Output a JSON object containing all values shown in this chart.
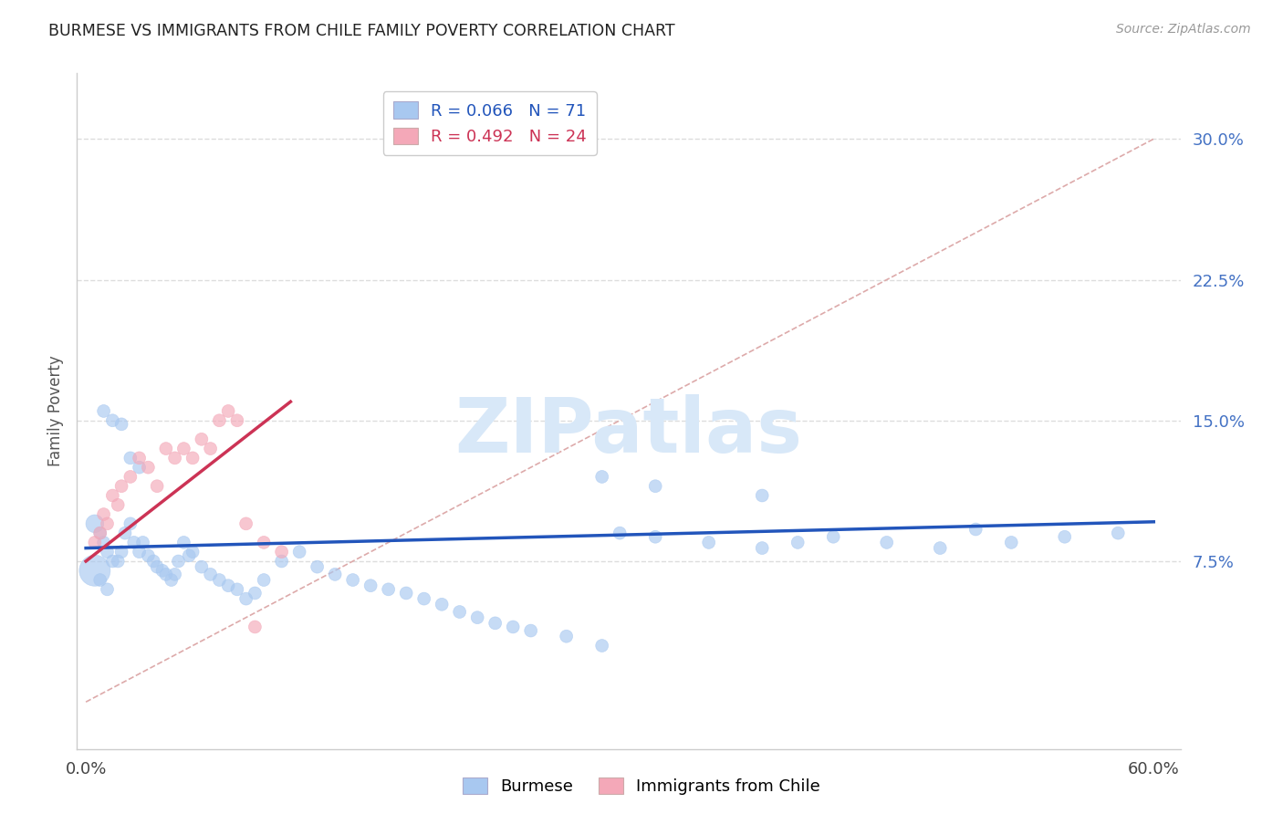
{
  "title": "BURMESE VS IMMIGRANTS FROM CHILE FAMILY POVERTY CORRELATION CHART",
  "source": "Source: ZipAtlas.com",
  "ylabel": "Family Poverty",
  "ytick_labels": [
    "7.5%",
    "15.0%",
    "22.5%",
    "30.0%"
  ],
  "ytick_values": [
    0.075,
    0.15,
    0.225,
    0.3
  ],
  "xtick_labels": [
    "0.0%",
    "60.0%"
  ],
  "xtick_values": [
    0.0,
    0.6
  ],
  "xlim": [
    -0.005,
    0.615
  ],
  "ylim": [
    -0.025,
    0.335
  ],
  "blue_color": "#a8c8f0",
  "pink_color": "#f4a8b8",
  "blue_line_color": "#2255bb",
  "pink_line_color": "#cc3355",
  "ref_line_color": "#ddaaaa",
  "grid_color": "#dddddd",
  "watermark_color": "#d8e8f8",
  "blue_scatter_x": [
    0.005,
    0.008,
    0.01,
    0.012,
    0.015,
    0.018,
    0.02,
    0.022,
    0.025,
    0.027,
    0.03,
    0.032,
    0.035,
    0.038,
    0.04,
    0.043,
    0.045,
    0.048,
    0.05,
    0.052,
    0.055,
    0.058,
    0.06,
    0.065,
    0.07,
    0.075,
    0.08,
    0.085,
    0.09,
    0.095,
    0.1,
    0.11,
    0.12,
    0.13,
    0.14,
    0.15,
    0.16,
    0.17,
    0.18,
    0.19,
    0.2,
    0.21,
    0.22,
    0.23,
    0.24,
    0.25,
    0.27,
    0.29,
    0.3,
    0.32,
    0.35,
    0.38,
    0.4,
    0.42,
    0.45,
    0.48,
    0.5,
    0.52,
    0.55,
    0.58,
    0.01,
    0.015,
    0.02,
    0.025,
    0.03,
    0.29,
    0.32,
    0.38,
    0.005,
    0.008,
    0.012
  ],
  "blue_scatter_y": [
    0.095,
    0.09,
    0.085,
    0.08,
    0.075,
    0.075,
    0.08,
    0.09,
    0.095,
    0.085,
    0.08,
    0.085,
    0.078,
    0.075,
    0.072,
    0.07,
    0.068,
    0.065,
    0.068,
    0.075,
    0.085,
    0.078,
    0.08,
    0.072,
    0.068,
    0.065,
    0.062,
    0.06,
    0.055,
    0.058,
    0.065,
    0.075,
    0.08,
    0.072,
    0.068,
    0.065,
    0.062,
    0.06,
    0.058,
    0.055,
    0.052,
    0.048,
    0.045,
    0.042,
    0.04,
    0.038,
    0.035,
    0.03,
    0.09,
    0.088,
    0.085,
    0.082,
    0.085,
    0.088,
    0.085,
    0.082,
    0.092,
    0.085,
    0.088,
    0.09,
    0.155,
    0.15,
    0.148,
    0.13,
    0.125,
    0.12,
    0.115,
    0.11,
    0.07,
    0.065,
    0.06
  ],
  "blue_scatter_sizes": [
    200,
    100,
    100,
    100,
    100,
    100,
    100,
    100,
    100,
    100,
    100,
    100,
    100,
    100,
    100,
    100,
    100,
    100,
    100,
    100,
    100,
    100,
    100,
    100,
    100,
    100,
    100,
    100,
    100,
    100,
    100,
    100,
    100,
    100,
    100,
    100,
    100,
    100,
    100,
    100,
    100,
    100,
    100,
    100,
    100,
    100,
    100,
    100,
    100,
    100,
    100,
    100,
    100,
    100,
    100,
    100,
    100,
    100,
    100,
    100,
    100,
    100,
    100,
    100,
    100,
    100,
    100,
    100,
    600,
    100,
    100
  ],
  "pink_scatter_x": [
    0.005,
    0.008,
    0.01,
    0.012,
    0.015,
    0.018,
    0.02,
    0.025,
    0.03,
    0.035,
    0.04,
    0.045,
    0.05,
    0.055,
    0.06,
    0.065,
    0.07,
    0.075,
    0.08,
    0.085,
    0.09,
    0.095,
    0.1,
    0.11
  ],
  "pink_scatter_y": [
    0.085,
    0.09,
    0.1,
    0.095,
    0.11,
    0.105,
    0.115,
    0.12,
    0.13,
    0.125,
    0.115,
    0.135,
    0.13,
    0.135,
    0.13,
    0.14,
    0.135,
    0.15,
    0.155,
    0.15,
    0.095,
    0.04,
    0.085,
    0.08
  ],
  "pink_scatter_sizes": [
    100,
    100,
    100,
    100,
    100,
    100,
    100,
    100,
    100,
    100,
    100,
    100,
    100,
    100,
    100,
    100,
    100,
    100,
    100,
    100,
    100,
    100,
    100,
    100
  ],
  "blue_regline_x": [
    0.0,
    0.6
  ],
  "blue_regline_y": [
    0.082,
    0.096
  ],
  "pink_regline_x": [
    0.0,
    0.115
  ],
  "pink_regline_y": [
    0.075,
    0.16
  ],
  "ref_line_x": [
    0.0,
    0.6
  ],
  "ref_line_y": [
    0.0,
    0.3
  ],
  "legend1_text": "R = 0.066   N = 71",
  "legend2_text": "R = 0.492   N = 24",
  "bottom_legend1": "Burmese",
  "bottom_legend2": "Immigrants from Chile"
}
